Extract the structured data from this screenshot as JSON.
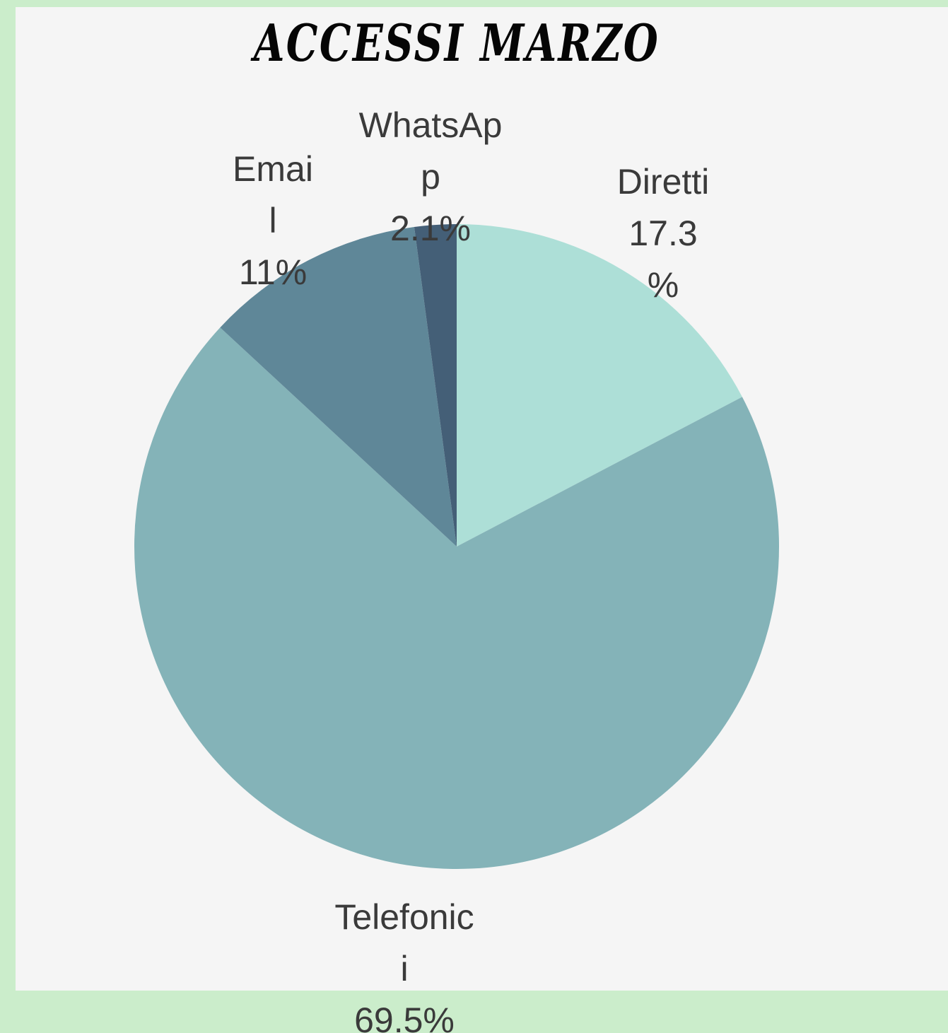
{
  "chart_data": {
    "type": "pie",
    "title": "ACCESSI MARZO",
    "slices": [
      {
        "category": "Diretti",
        "label_lines": [
          "Diretti",
          "17.3",
          "%"
        ],
        "value": 17.3,
        "color": "#addfd7"
      },
      {
        "category": "Telefonici",
        "label_lines": [
          "Telefonic",
          "i",
          "69.5%"
        ],
        "value": 69.5,
        "color": "#84b3b8"
      },
      {
        "category": "Email",
        "label_lines": [
          "Emai",
          "l",
          "11%"
        ],
        "value": 11,
        "color": "#5f8798"
      },
      {
        "category": "WhatsApp",
        "label_lines": [
          "WhatsAp",
          "p",
          "2.1%"
        ],
        "value": 2.1,
        "color": "#445f77"
      }
    ],
    "start_angle": "12 o'clock",
    "direction": "clockwise",
    "legend": "none"
  }
}
